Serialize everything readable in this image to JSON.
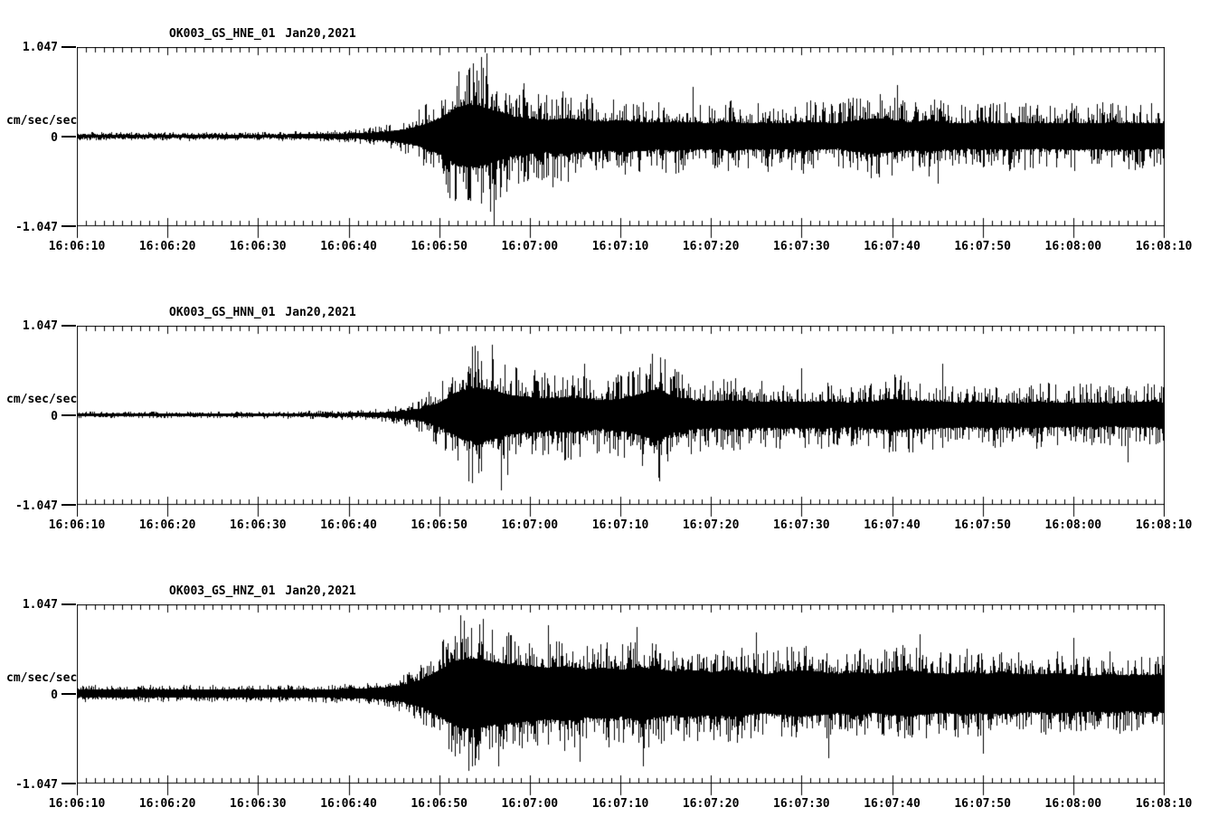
{
  "page": {
    "background_color": "#ffffff",
    "trace_color": "#000000",
    "description": "Three-component strong-motion seismogram record section, station OK003"
  },
  "axis": {
    "y_max": "1.047",
    "y_zero": "0",
    "y_min": "-1.047",
    "unit": "cm/sec/sec"
  },
  "time": {
    "start": "16:06:10",
    "end": "16:08:10",
    "duration_s": 120,
    "major_tick_s": 10,
    "minor_tick_s": 1,
    "labels": [
      "16:06:10",
      "16:06:20",
      "16:06:30",
      "16:06:40",
      "16:06:50",
      "16:07:00",
      "16:07:10",
      "16:07:20",
      "16:07:30",
      "16:07:40",
      "16:07:50",
      "16:08:00",
      "16:08:10"
    ]
  },
  "chart_data": [
    {
      "type": "line",
      "subtype": "seismogram-waveform",
      "station_channel": "OK003_GS_HNE_01",
      "date_label": "Jan20,2021",
      "ylabel": "cm/sec/sec",
      "ylim": [
        -1.047,
        1.047
      ],
      "ytick_labels": [
        "1.047",
        "0",
        "-1.047"
      ],
      "x_start": "16:06:10",
      "x_end": "16:08:10",
      "envelope_dt_s": 2,
      "body_fraction": 0.38,
      "envelope_abs_peak": [
        0.05,
        0.05,
        0.05,
        0.05,
        0.05,
        0.05,
        0.05,
        0.05,
        0.05,
        0.05,
        0.05,
        0.05,
        0.06,
        0.06,
        0.07,
        0.08,
        0.1,
        0.14,
        0.2,
        0.33,
        0.55,
        0.9,
        0.97,
        0.8,
        0.62,
        0.55,
        0.5,
        0.55,
        0.5,
        0.45,
        0.5,
        0.45,
        0.42,
        0.45,
        0.42,
        0.4,
        0.45,
        0.4,
        0.42,
        0.4,
        0.45,
        0.42,
        0.4,
        0.48,
        0.55,
        0.5,
        0.42,
        0.5,
        0.42,
        0.4,
        0.42,
        0.4,
        0.42,
        0.4,
        0.4,
        0.42,
        0.4,
        0.4,
        0.42,
        0.4,
        0.4
      ],
      "spikes": [
        {
          "t": 43.4,
          "v": -0.75
        },
        {
          "t": 44.6,
          "v": 0.93
        },
        {
          "t": 45.2,
          "v": 0.97
        },
        {
          "t": 45.6,
          "v": -0.88
        },
        {
          "t": 46.0,
          "v": -1.02
        },
        {
          "t": 49.3,
          "v": 0.62
        },
        {
          "t": 52.5,
          "v": -0.6
        },
        {
          "t": 68.0,
          "v": 0.58
        },
        {
          "t": 90.5,
          "v": 0.6
        },
        {
          "t": 95.0,
          "v": -0.55
        }
      ]
    },
    {
      "type": "line",
      "subtype": "seismogram-waveform",
      "station_channel": "OK003_GS_HNN_01",
      "date_label": "Jan20,2021",
      "ylabel": "cm/sec/sec",
      "ylim": [
        -1.047,
        1.047
      ],
      "ytick_labels": [
        "1.047",
        "0",
        "-1.047"
      ],
      "x_start": "16:06:10",
      "x_end": "16:08:10",
      "envelope_dt_s": 2,
      "body_fraction": 0.38,
      "envelope_abs_peak": [
        0.04,
        0.04,
        0.04,
        0.04,
        0.04,
        0.04,
        0.04,
        0.04,
        0.04,
        0.04,
        0.04,
        0.04,
        0.045,
        0.05,
        0.05,
        0.055,
        0.06,
        0.08,
        0.12,
        0.2,
        0.38,
        0.7,
        0.85,
        0.75,
        0.6,
        0.55,
        0.5,
        0.55,
        0.5,
        0.45,
        0.5,
        0.62,
        0.8,
        0.55,
        0.45,
        0.42,
        0.45,
        0.42,
        0.4,
        0.42,
        0.4,
        0.42,
        0.4,
        0.38,
        0.42,
        0.5,
        0.45,
        0.42,
        0.4,
        0.38,
        0.4,
        0.38,
        0.36,
        0.4,
        0.38,
        0.36,
        0.38,
        0.36,
        0.38,
        0.4,
        0.38
      ],
      "spikes": [
        {
          "t": 44.2,
          "v": 0.75
        },
        {
          "t": 45.8,
          "v": 0.82
        },
        {
          "t": 46.8,
          "v": -0.88
        },
        {
          "t": 47.5,
          "v": -0.7
        },
        {
          "t": 56.0,
          "v": 0.6
        },
        {
          "t": 63.5,
          "v": 0.72
        },
        {
          "t": 64.3,
          "v": -0.78
        },
        {
          "t": 80.0,
          "v": 0.55
        },
        {
          "t": 95.5,
          "v": 0.6
        },
        {
          "t": 116.0,
          "v": -0.55
        }
      ]
    },
    {
      "type": "line",
      "subtype": "seismogram-waveform",
      "station_channel": "OK003_GS_HNZ_01",
      "date_label": "Jan20,2021",
      "ylabel": "cm/sec/sec",
      "ylim": [
        -1.047,
        1.047
      ],
      "ytick_labels": [
        "1.047",
        "0",
        "-1.047"
      ],
      "x_start": "16:06:10",
      "x_end": "16:08:10",
      "envelope_dt_s": 2,
      "body_fraction": 0.46,
      "envelope_abs_peak": [
        0.1,
        0.1,
        0.1,
        0.1,
        0.1,
        0.1,
        0.1,
        0.1,
        0.1,
        0.1,
        0.1,
        0.1,
        0.1,
        0.1,
        0.11,
        0.12,
        0.13,
        0.16,
        0.22,
        0.35,
        0.6,
        0.85,
        0.9,
        0.8,
        0.75,
        0.7,
        0.65,
        0.7,
        0.62,
        0.65,
        0.6,
        0.68,
        0.62,
        0.56,
        0.6,
        0.55,
        0.6,
        0.55,
        0.5,
        0.55,
        0.6,
        0.55,
        0.5,
        0.55,
        0.5,
        0.55,
        0.58,
        0.52,
        0.5,
        0.55,
        0.5,
        0.52,
        0.5,
        0.48,
        0.52,
        0.48,
        0.45,
        0.5,
        0.46,
        0.48,
        0.48
      ],
      "spikes": [
        {
          "t": 42.3,
          "v": 0.92
        },
        {
          "t": 43.2,
          "v": -0.9
        },
        {
          "t": 44.8,
          "v": 0.88
        },
        {
          "t": 46.5,
          "v": -0.85
        },
        {
          "t": 52.0,
          "v": 0.8
        },
        {
          "t": 55.5,
          "v": -0.8
        },
        {
          "t": 61.8,
          "v": 0.78
        },
        {
          "t": 62.5,
          "v": -0.85
        },
        {
          "t": 75.0,
          "v": 0.72
        },
        {
          "t": 83.0,
          "v": -0.75
        },
        {
          "t": 93.0,
          "v": 0.7
        },
        {
          "t": 100.0,
          "v": -0.7
        },
        {
          "t": 110.0,
          "v": 0.65
        }
      ]
    }
  ]
}
